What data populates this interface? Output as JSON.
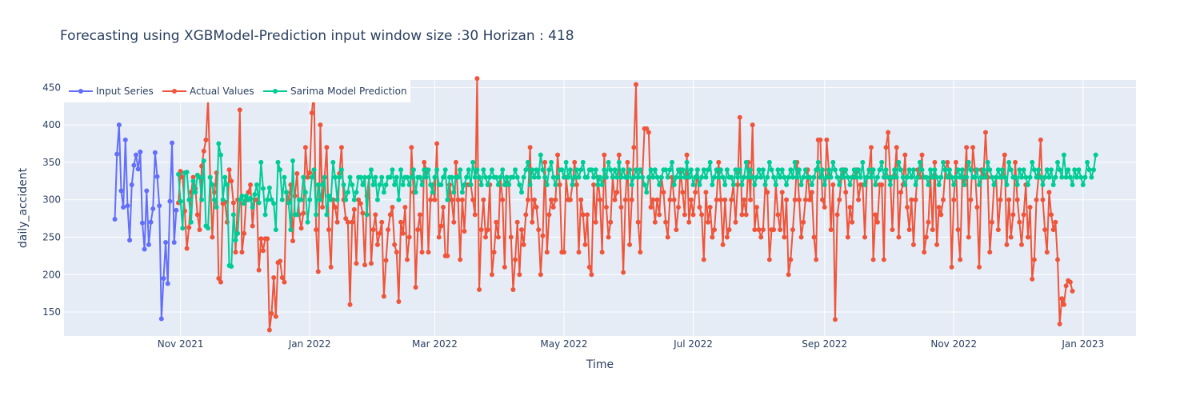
{
  "chart_data": {
    "type": "line",
    "title": "Forecasting using XGBModel-Prediction input window size :30  Horizan : 418",
    "xlabel": "Time",
    "ylabel": "daily_accident",
    "xlim": [
      "2021-09-07",
      "2023-01-26"
    ],
    "ylim": [
      118,
      460
    ],
    "x_ticks": [
      {
        "date": "2021-11-01",
        "label": "Nov 2021"
      },
      {
        "date": "2022-01-01",
        "label": "Jan 2022"
      },
      {
        "date": "2022-03-01",
        "label": "Mar 2022"
      },
      {
        "date": "2022-05-01",
        "label": "May 2022"
      },
      {
        "date": "2022-07-01",
        "label": "Jul 2022"
      },
      {
        "date": "2022-09-01",
        "label": "Sep 2022"
      },
      {
        "date": "2022-11-01",
        "label": "Nov 2022"
      },
      {
        "date": "2023-01-01",
        "label": "Jan 2023"
      }
    ],
    "y_ticks": [
      150,
      200,
      250,
      300,
      350,
      400,
      450
    ],
    "grid": true,
    "legend_position": "top-left",
    "background": "#e5ecf6",
    "series": [
      {
        "name": "Input Series",
        "color": "#636efa",
        "start": "2021-10-01",
        "values": [
          274,
          361,
          400,
          312,
          290,
          380,
          292,
          246,
          320,
          346,
          360,
          341,
          364,
          269,
          234,
          312,
          240,
          270,
          288,
          363,
          331,
          292,
          141,
          195,
          243,
          188,
          298,
          376,
          243,
          286
        ]
      },
      {
        "name": "Actual Values",
        "color": "#ef553b",
        "start": "2021-10-31",
        "values": [
          296,
          338,
          330,
          285,
          235,
          263,
          310,
          330,
          315,
          280,
          260,
          345,
          365,
          380,
          435,
          330,
          250,
          310,
          336,
          195,
          190,
          295,
          297,
          270,
          340,
          325,
          296,
          230,
          300,
          420,
          230,
          255,
          300,
          310,
          320,
          265,
          300,
          300,
          206,
          248,
          232,
          248,
          248,
          126,
          148,
          196,
          144,
          216,
          218,
          196,
          190,
          310,
          300,
          320,
          245,
          305,
          335,
          280,
          262,
          282,
          370,
          330,
          336,
          416,
          447,
          260,
          204,
          400,
          290,
          330,
          370,
          260,
          210,
          300,
          290,
          270,
          335,
          370,
          300,
          275,
          270,
          160,
          270,
          287,
          215,
          300,
          295,
          282,
          213,
          305,
          330,
          215,
          260,
          280,
          240,
          255,
          270,
          171,
          219,
          260,
          280,
          290,
          240,
          230,
          164,
          270,
          255,
          290,
          220,
          250,
          370,
          310,
          183,
          260,
          280,
          230,
          350,
          340,
          230,
          300,
          320,
          300,
          375,
          250,
          265,
          290,
          225,
          225,
          320,
          300,
          270,
          350,
          300,
          220,
          300,
          258,
          320,
          320,
          320,
          300,
          280,
          462,
          180,
          260,
          300,
          250,
          260,
          320,
          200,
          230,
          270,
          250,
          330,
          300,
          210,
          330,
          320,
          250,
          180,
          220,
          270,
          200,
          260,
          240,
          280,
          300,
          370,
          270,
          300,
          290,
          260,
          200,
          252,
          350,
          230,
          280,
          300,
          290,
          300,
          360,
          320,
          230,
          230,
          330,
          300,
          300,
          320,
          350,
          320,
          230,
          300,
          280,
          240,
          280,
          210,
          200,
          320,
          270,
          330,
          300,
          230,
          360,
          290,
          250,
          270,
          330,
          300,
          310,
          360,
          290,
          203,
          300,
          350,
          240,
          300,
          370,
          454,
          270,
          230,
          330,
          395,
          395,
          390,
          290,
          300,
          270,
          300,
          280,
          330,
          310,
          270,
          250,
          300,
          330,
          300,
          260,
          290,
          340,
          310,
          280,
          360,
          270,
          300,
          280,
          310,
          340,
          290,
          280,
          220,
          310,
          270,
          290,
          250,
          260,
          300,
          350,
          300,
          240,
          300,
          250,
          260,
          300,
          320,
          270,
          320,
          410,
          280,
          300,
          280,
          350,
          300,
          400,
          260,
          290,
          260,
          250,
          260,
          320,
          310,
          220,
          260,
          260,
          320,
          280,
          260,
          310,
          250,
          300,
          200,
          220,
          260,
          300,
          350,
          300,
          250,
          270,
          300,
          340,
          300,
          310,
          250,
          220,
          380,
          380,
          300,
          290,
          380,
          340,
          260,
          320,
          140,
          280,
          300,
          330,
          340,
          310,
          250,
          290,
          270,
          330,
          340,
          300,
          320,
          320,
          250,
          330,
          340,
          370,
          220,
          280,
          270,
          320,
          320,
          220,
          370,
          390,
          330,
          260,
          330,
          370,
          250,
          310,
          320,
          360,
          290,
          260,
          300,
          240,
          300,
          340,
          330,
          360,
          230,
          250,
          270,
          330,
          260,
          350,
          240,
          290,
          280,
          300,
          340,
          350,
          330,
          210,
          300,
          350,
          260,
          220,
          330,
          320,
          370,
          250,
          300,
          370,
          340,
          290,
          210,
          340,
          330,
          390,
          330,
          230,
          270,
          320,
          330,
          260,
          300,
          340,
          360,
          240,
          300,
          250,
          280,
          350,
          300,
          270,
          240,
          280,
          320,
          250,
          290,
          194,
          220,
          300,
          330,
          380,
          300,
          260,
          230,
          310,
          280,
          260,
          270,
          220,
          134,
          168,
          160,
          185,
          192,
          190,
          178
        ]
      },
      {
        "name": "Sarima Model Prediction",
        "color": "#00cc96",
        "start": "2021-10-31",
        "values": [
          334,
          298,
          262,
          336,
          337,
          300,
          270,
          325,
          310,
          333,
          330,
          300,
          352,
          265,
          262,
          330,
          320,
          300,
          290,
          375,
          360,
          300,
          330,
          320,
          212,
          211,
          280,
          246,
          255,
          300,
          305,
          295,
          305,
          300,
          302,
          290,
          307,
          320,
          296,
          350,
          315,
          280,
          300,
          316,
          300,
          295,
          260,
          350,
          340,
          300,
          330,
          310,
          296,
          260,
          352,
          280,
          280,
          300,
          300,
          330,
          310,
          270,
          300,
          330,
          340,
          280,
          320,
          300,
          320,
          330,
          280,
          305,
          300,
          350,
          330,
          300,
          330,
          340,
          320,
          300,
          310,
          330,
          320,
          300,
          310,
          330,
          330,
          320,
          330,
          280,
          330,
          340,
          320,
          330,
          300,
          320,
          330,
          310,
          320,
          330,
          330,
          340,
          320,
          330,
          300,
          340,
          320,
          330,
          330,
          320,
          330,
          340,
          310,
          330,
          330,
          320,
          340,
          330,
          340,
          320,
          310,
          330,
          340,
          320,
          320,
          330,
          340,
          300,
          330,
          330,
          310,
          330,
          330,
          340,
          310,
          320,
          330,
          340,
          320,
          350,
          330,
          340,
          330,
          320,
          340,
          330,
          320,
          330,
          340,
          330,
          330,
          320,
          330,
          340,
          320,
          330,
          320,
          330,
          330,
          340,
          330,
          320,
          310,
          330,
          340,
          350,
          320,
          340,
          330,
          340,
          330,
          360,
          340,
          330,
          320,
          340,
          350,
          330,
          320,
          330,
          340,
          340,
          330,
          350,
          330,
          340,
          320,
          330,
          340,
          330,
          340,
          350,
          330,
          330,
          340,
          340,
          330,
          340,
          320,
          330,
          320,
          340,
          330,
          350,
          340,
          330,
          340,
          330,
          350,
          330,
          340,
          330,
          330,
          340,
          320,
          330,
          340,
          330,
          340,
          330,
          320,
          310,
          330,
          340,
          330,
          340,
          330,
          320,
          330,
          340,
          340,
          330,
          340,
          350,
          320,
          330,
          340,
          330,
          340,
          330,
          350,
          330,
          340,
          320,
          330,
          340,
          320,
          330,
          340,
          330,
          340,
          350,
          320,
          330,
          340,
          330,
          340,
          330,
          320,
          340,
          330,
          330,
          320,
          340,
          330,
          340,
          320,
          330,
          350,
          330,
          340,
          330,
          320,
          330,
          340,
          330,
          340,
          320,
          330,
          350,
          340,
          330,
          320,
          340,
          330,
          340,
          330,
          320,
          330,
          340,
          330,
          350,
          330,
          340,
          320,
          330,
          340,
          330,
          330,
          320,
          330,
          340,
          350,
          330,
          340,
          320,
          330,
          340,
          330,
          350,
          340,
          330,
          320,
          340,
          330,
          340,
          330,
          320,
          330,
          340,
          330,
          340,
          330,
          350,
          320,
          330,
          340,
          330,
          340,
          320,
          330,
          340,
          350,
          330,
          340,
          330,
          320,
          330,
          340,
          330,
          350,
          340,
          330,
          320,
          330,
          340,
          330,
          340,
          320,
          330,
          350,
          340,
          330,
          330,
          320,
          340,
          330,
          340,
          330,
          320,
          330,
          350,
          340,
          330,
          340,
          330,
          320,
          330,
          340,
          330,
          340,
          320,
          330,
          350,
          340,
          330,
          330,
          340,
          320,
          330,
          340,
          330,
          350,
          340,
          330,
          320,
          330,
          340,
          330,
          340,
          330,
          320,
          350,
          340,
          330,
          330,
          320,
          340,
          330,
          340,
          330,
          320,
          330,
          350,
          340,
          330,
          340,
          330,
          320,
          330,
          340,
          330,
          340,
          320,
          330,
          350,
          340,
          330,
          360,
          330,
          340,
          330,
          320,
          340,
          330,
          340,
          330,
          320,
          330,
          350,
          340,
          330,
          340,
          360
        ]
      }
    ]
  }
}
